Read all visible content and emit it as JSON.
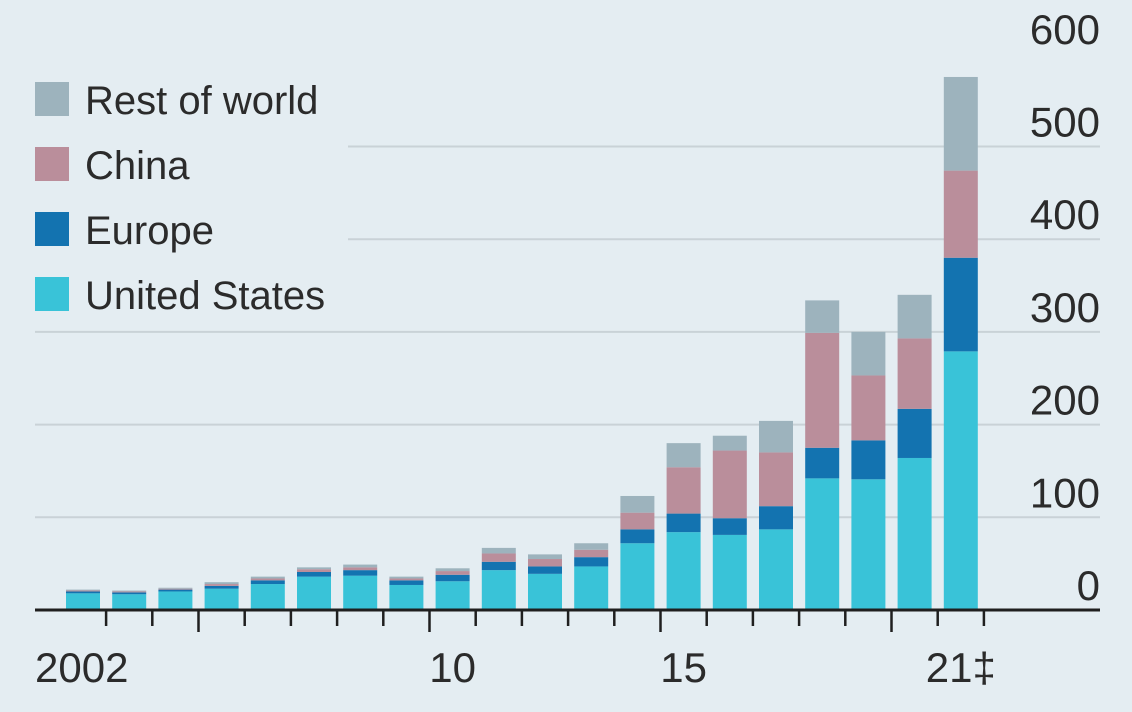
{
  "chart_data": {
    "type": "bar",
    "stacked": true,
    "categories": [
      "2002",
      "2003",
      "2004",
      "2005",
      "2006",
      "2007",
      "2008",
      "2009",
      "2010",
      "2011",
      "2012",
      "2013",
      "2014",
      "2015",
      "2016",
      "2017",
      "2018",
      "2019",
      "2020",
      "2021"
    ],
    "x_tick_labels": [
      {
        "category": "2002",
        "text": "2002"
      },
      {
        "category": "2010",
        "text": "10"
      },
      {
        "category": "2015",
        "text": "15"
      },
      {
        "category": "2021",
        "text": "21‡"
      }
    ],
    "series": [
      {
        "name": "United States",
        "color": "#39c3d8",
        "values": [
          18,
          17,
          20,
          23,
          28,
          36,
          37,
          27,
          31,
          43,
          39,
          47,
          72,
          84,
          81,
          87,
          142,
          141,
          164,
          279
        ]
      },
      {
        "name": "Europe",
        "color": "#1373b0",
        "values": [
          2,
          2,
          2,
          3,
          4,
          5,
          6,
          5,
          7,
          9,
          8,
          10,
          15,
          20,
          18,
          25,
          33,
          42,
          53,
          101
        ]
      },
      {
        "name": "China",
        "color": "#ba8e9b",
        "values": [
          1,
          1,
          1,
          2,
          2,
          3,
          3,
          2,
          4,
          9,
          8,
          8,
          18,
          50,
          73,
          58,
          124,
          70,
          76,
          94
        ]
      },
      {
        "name": "Rest of world",
        "color": "#9db3bd",
        "values": [
          1,
          1,
          1,
          2,
          2,
          2,
          3,
          2,
          3,
          6,
          5,
          7,
          18,
          26,
          16,
          34,
          35,
          47,
          47,
          101
        ]
      }
    ],
    "legend_order": [
      "Rest of world",
      "China",
      "Europe",
      "United States"
    ],
    "legend_position": "top-left",
    "y_axis": {
      "position": "right",
      "range": [
        0,
        600
      ],
      "ticks": [
        0,
        100,
        200,
        300,
        400,
        500,
        600
      ]
    },
    "grid": true
  },
  "colors": {
    "background": "#e4edf2",
    "gridline": "#c9d2d7",
    "axis": "#1f1f1f",
    "text": "#2b2b2b"
  }
}
